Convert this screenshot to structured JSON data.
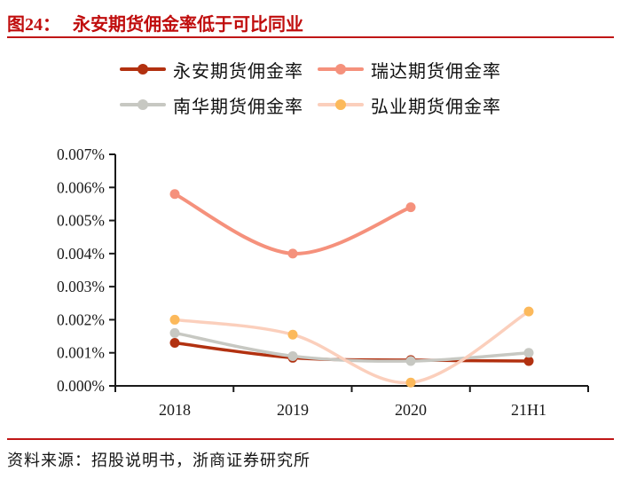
{
  "figure": {
    "label": "图24：",
    "title": "永安期货佣金率低于可比同业"
  },
  "source": {
    "text": "资料来源：招股说明书，浙商证券研究所"
  },
  "colors": {
    "title_red": "#c00d0d",
    "rule_red": "#c01616",
    "axis_black": "#1a1a1a"
  },
  "chart_data": {
    "type": "line",
    "title": "永安期货佣金率低于可比同业",
    "categories": [
      "2018",
      "2019",
      "2020",
      "21H1"
    ],
    "unit": "%",
    "ylim": [
      0,
      0.007
    ],
    "ytick_step": 0.001,
    "ytick_suffix": "%",
    "ytick_decimals": 3,
    "grid": false,
    "legend_position": "top",
    "smooth": true,
    "series": [
      {
        "name": "永安期货佣金率",
        "color": "#b23110",
        "values": [
          0.0013,
          0.00085,
          0.00078,
          0.00075
        ]
      },
      {
        "name": "瑞达期货佣金率",
        "color": "#f5917c",
        "values": [
          0.0058,
          0.004,
          0.0054,
          null
        ]
      },
      {
        "name": "南华期货佣金率",
        "color": "#c7c8c2",
        "values": [
          0.0016,
          0.0009,
          0.00075,
          0.001
        ]
      },
      {
        "name": "弘业期货佣金率",
        "color": "#fbcfbc",
        "marker_color": "#fcb95b",
        "values": [
          0.002,
          0.00155,
          0.0001,
          0.00225
        ]
      }
    ]
  }
}
